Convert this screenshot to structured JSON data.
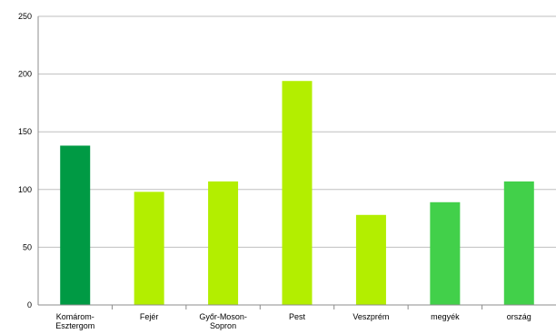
{
  "chart_data": {
    "type": "bar",
    "title": "",
    "xlabel": "",
    "ylabel": "",
    "ylim": [
      0,
      250
    ],
    "yticks": [
      0,
      50,
      100,
      150,
      200,
      250
    ],
    "grid": true,
    "legend": "none",
    "categories": [
      [
        "Komárom-",
        "Esztergom"
      ],
      [
        "Fejér"
      ],
      [
        "Győr-Moson-",
        "Sopron"
      ],
      [
        "Pest"
      ],
      [
        "Veszprém"
      ],
      [
        "megyék"
      ],
      [
        "ország"
      ]
    ],
    "values": [
      138,
      98,
      107,
      194,
      78,
      89,
      107
    ],
    "bar_colors": [
      "#009a44",
      "#b3ee00",
      "#b3ee00",
      "#b3ee00",
      "#b3ee00",
      "#42d04a",
      "#42d04a"
    ]
  }
}
